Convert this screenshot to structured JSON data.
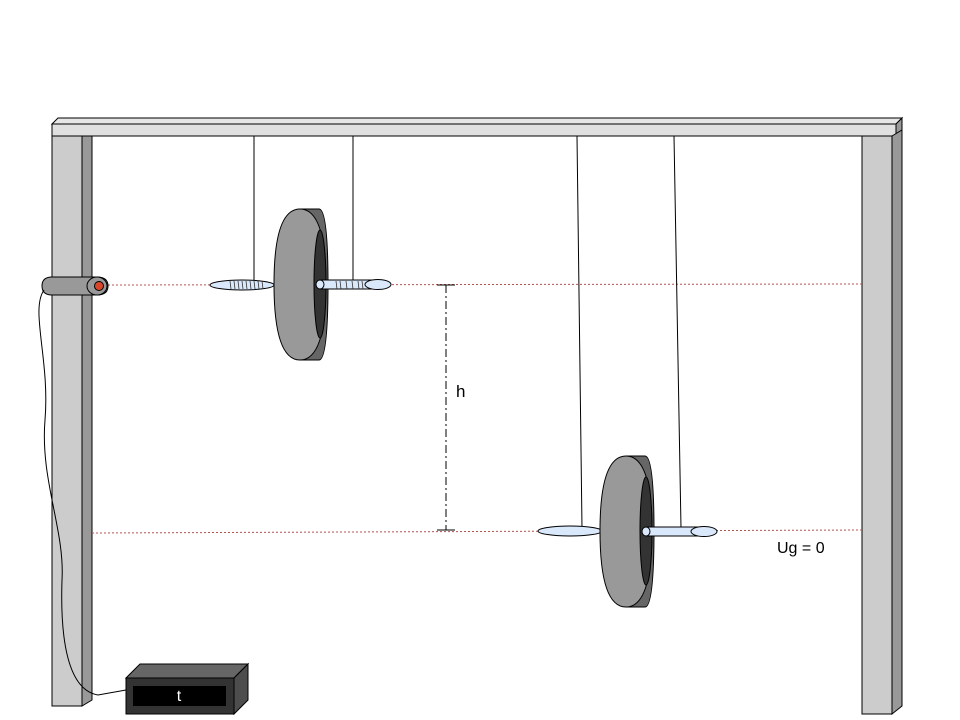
{
  "labels": {
    "height": "h",
    "ground_energy": "Ug = 0",
    "timer": "t"
  },
  "colors": {
    "frame_face": "#cccccc",
    "frame_shadow": "#999999",
    "frame_top": "#e0e0e0",
    "wheel_tread": "#999999",
    "wheel_rim": "#666666",
    "wheel_hub": "#333333",
    "axle": "#dae8fc",
    "sensor_body": "#999999",
    "sensor_lens": "#d9472b",
    "guide_line": "#b85450",
    "timer_body": "#333333",
    "timer_top": "#666666",
    "timer_display": "#000000",
    "timer_text": "#ffffff"
  }
}
